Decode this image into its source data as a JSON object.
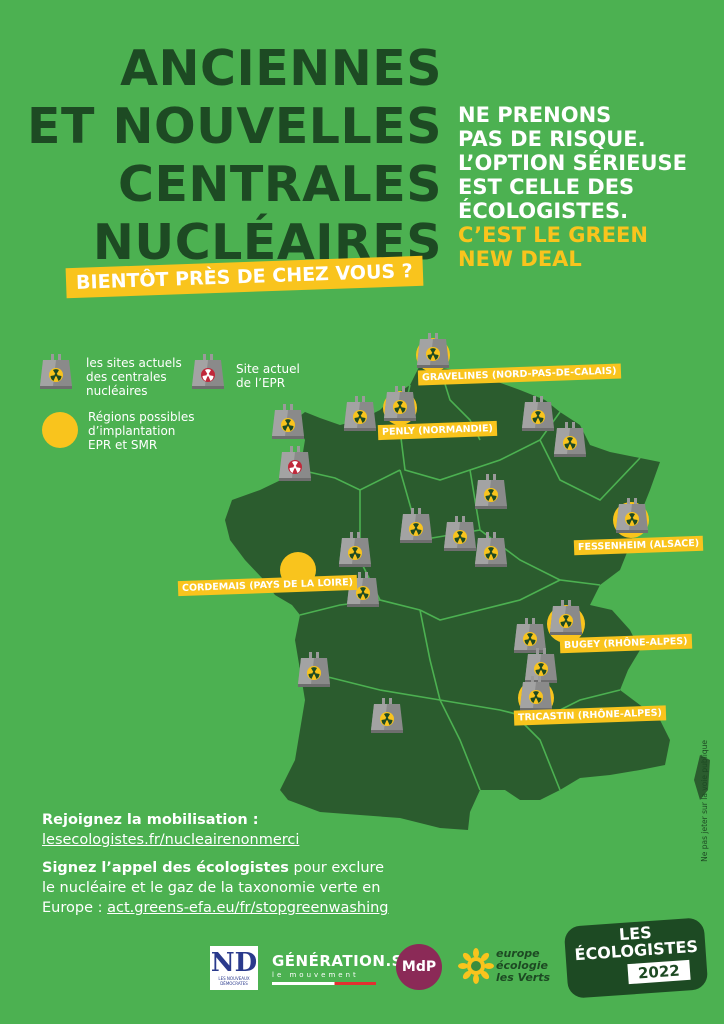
{
  "title": {
    "line1": "ANCIENNES",
    "line2": "ET NOUVELLES",
    "line3": "CENTRALES",
    "line4": "NUCLÉAIRES"
  },
  "subtitle": "BIENTÔT PRÈS DE CHEZ VOUS ?",
  "slogan": {
    "line1": "NE PRENONS",
    "line2": "PAS DE RISQUE.",
    "line3": "L’OPTION SÉRIEUSE",
    "line4": "EST CELLE DES",
    "line5": "ÉCOLOGISTES.",
    "highlight1": "C’EST LE GREEN",
    "highlight2": "NEW DEAL"
  },
  "legend": {
    "current_sites_1": "les sites actuels",
    "current_sites_2": "des centrales",
    "current_sites_3": "nucléaires",
    "epr_site_1": "Site actuel",
    "epr_site_2": "de l’EPR",
    "regions_1": "Régions possibles",
    "regions_2": "d’implantation",
    "regions_3": "EPR et SMR"
  },
  "site_labels": {
    "gravelines": "GRAVELINES (NORD-PAS-DE-CALAIS)",
    "penly": "PENLY (NORMANDIE)",
    "fessenheim": "FESSENHEIM (ALSACE)",
    "cordemais": "CORDEMAIS (PAYS DE LA LOIRE)",
    "bugey": "BUGEY (RHÔNE-ALPES)",
    "tricastin": "TRICASTIN (RHÔNE-ALPES)"
  },
  "bottom": {
    "join_label": "Rejoignez la mobilisation :",
    "join_link": "lesecologistes.fr/nucleairenonmerci",
    "sign_bold": "Signez l’appel des écologistes",
    "sign_rest1": " pour exclure",
    "sign_line2": "le nucléaire et le gaz de la taxonomie verte en",
    "sign_line3_prefix": "Europe : ",
    "sign_link": "act.greens-efa.eu/fr/stopgreenwashing"
  },
  "vertical_note": "Ne pas jeter sur la voie publique",
  "logos": {
    "nd_letters": "ND",
    "nd_small1": "LES NOUVEAUX",
    "nd_small2": "DÉMOCRATES",
    "generations": "GÉNÉRATION.S",
    "generations_sub": "le mouvement",
    "mdp": "MdP",
    "eelv_1": "europe",
    "eelv_2": "écologie",
    "eelv_3": "les Verts",
    "les": "LES",
    "ecologistes": "ÉCOLOGISTES",
    "year": "2022"
  },
  "colors": {
    "background": "#4cb151",
    "dark_green": "#1d4a23",
    "yellow": "#f9c41d",
    "map": "#2b5c2e",
    "map_borders": "#4cb151",
    "reactor_gray": "#8a8a8a",
    "epr_red": "#c0283a"
  }
}
